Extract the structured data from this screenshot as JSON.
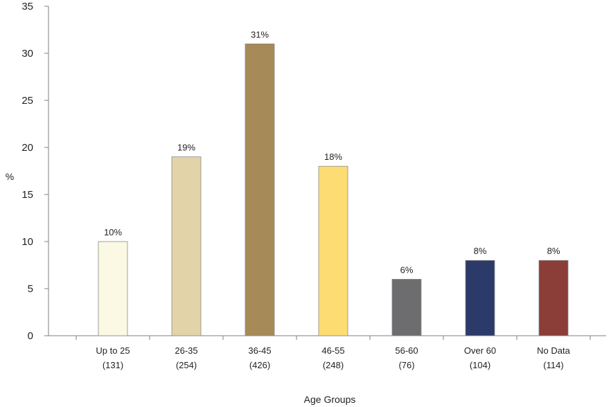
{
  "chart_data": {
    "type": "bar",
    "title": "",
    "xlabel": "Age Groups",
    "ylabel": "%",
    "ylim": [
      0,
      35
    ],
    "yticks": [
      "0",
      "5",
      "10",
      "15",
      "20",
      "25",
      "30",
      "35"
    ],
    "grid": false,
    "categories": [
      {
        "line1": "Up to 25",
        "line2": "(131)"
      },
      {
        "line1": "26-35",
        "line2": "(254)"
      },
      {
        "line1": "36-45",
        "line2": "(426)"
      },
      {
        "line1": "46-55",
        "line2": "(248)"
      },
      {
        "line1": "56-60",
        "line2": "(76)"
      },
      {
        "line1": "Over 60",
        "line2": "(104)"
      },
      {
        "line1": "No Data",
        "line2": "(114)"
      }
    ],
    "values": [
      10,
      19,
      31,
      18,
      6,
      8,
      8
    ],
    "data_labels": [
      "10%",
      "19%",
      "31%",
      "18%",
      "6%",
      "8%",
      "8%"
    ],
    "colors": [
      "#fbf8e3",
      "#e2d3a9",
      "#a68a57",
      "#fddc73",
      "#6d6d6f",
      "#2c3a6a",
      "#8b3d37"
    ]
  }
}
